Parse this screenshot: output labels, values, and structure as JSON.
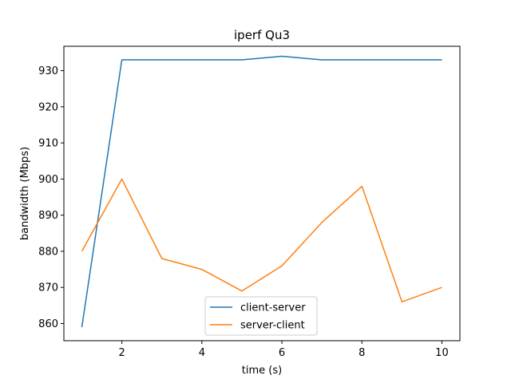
{
  "chart_data": {
    "type": "line",
    "title": "iperf Qu3",
    "xlabel": "time (s)",
    "ylabel": "bandwidth (Mbps)",
    "x": [
      1,
      2,
      3,
      4,
      5,
      6,
      7,
      8,
      9,
      10
    ],
    "xlim": [
      0.55,
      10.45
    ],
    "ylim": [
      855.25,
      936.75
    ],
    "xticks": [
      2,
      4,
      6,
      8,
      10
    ],
    "yticks": [
      860,
      870,
      880,
      890,
      900,
      910,
      920,
      930
    ],
    "grid": false,
    "legend_position": "bottom-center",
    "series": [
      {
        "name": "client-server",
        "color": "#1f77b4",
        "values": [
          859,
          933,
          933,
          933,
          933,
          934,
          933,
          933,
          933,
          933
        ]
      },
      {
        "name": "server-client",
        "color": "#ff7f0e",
        "values": [
          880,
          900,
          878,
          875,
          869,
          876,
          888,
          898,
          866,
          870
        ]
      }
    ]
  }
}
